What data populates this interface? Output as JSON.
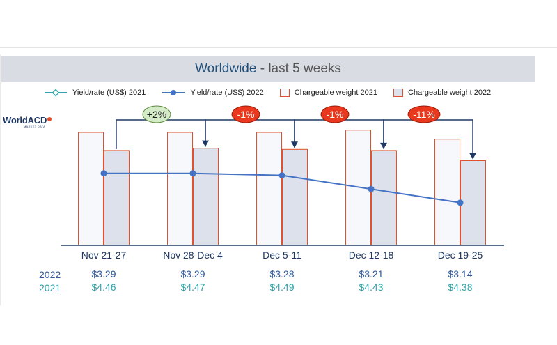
{
  "title": {
    "main": "Worldwide",
    "sub": " - last 5 weeks"
  },
  "logo": {
    "name": "WorldACD",
    "tagline": "MARKET DATA"
  },
  "legend": [
    {
      "label": "Yield/rate (US$) 2021",
      "kind": "line",
      "color": "#2fa3a8",
      "marker": "diamond"
    },
    {
      "label": "Yield/rate (US$) 2022",
      "kind": "line",
      "color": "#4472c4",
      "marker": "circle"
    },
    {
      "label": "Chargeable weight 2021",
      "kind": "bar",
      "color": "#f7f8fb",
      "edge": "#e0502e"
    },
    {
      "label": "Chargeable weight 2022",
      "kind": "bar",
      "color": "#dce1ec",
      "edge": "#e0502e"
    }
  ],
  "chart_data": {
    "type": "bar",
    "categories": [
      "Nov 21-27",
      "Nov 28-Dec 4",
      "Dec 5-11",
      "Dec 12-18",
      "Dec 19-25"
    ],
    "series": [
      {
        "name": "Chargeable weight 2021",
        "type": "bar",
        "values": [
          100,
          100,
          100,
          102,
          94
        ]
      },
      {
        "name": "Chargeable weight 2022",
        "type": "bar",
        "values": [
          84,
          86,
          85,
          84,
          75
        ]
      },
      {
        "name": "Yield/rate (US$) 2021",
        "type": "line",
        "values": [
          4.46,
          4.47,
          4.49,
          4.43,
          4.38
        ]
      },
      {
        "name": "Yield/rate (US$) 2022",
        "type": "line",
        "values": [
          3.29,
          3.29,
          3.28,
          3.21,
          3.14
        ]
      }
    ],
    "value_rows": [
      {
        "year": "2022",
        "values": [
          "$3.29",
          "$3.29",
          "$3.28",
          "$3.21",
          "$3.14"
        ]
      },
      {
        "year": "2021",
        "values": [
          "$4.46",
          "$4.47",
          "$4.49",
          "$4.43",
          "$4.38"
        ]
      }
    ],
    "annotations": [
      {
        "label": "+2%",
        "style": "positive"
      },
      {
        "label": "-1%",
        "style": "negative"
      },
      {
        "label": "-1%",
        "style": "negative"
      },
      {
        "label": "-11%",
        "style": "negative"
      }
    ],
    "colors": {
      "line2021": "#2fa3a8",
      "line2022": "#4472c4",
      "bar2021": "#f7f8fb",
      "bar2022": "#dce1ec",
      "barEdge": "#e0502e",
      "positiveBadge": "#d5ebc8",
      "negativeBadge": "#e8391e",
      "arrow": "#1f3864"
    },
    "grid": false
  }
}
